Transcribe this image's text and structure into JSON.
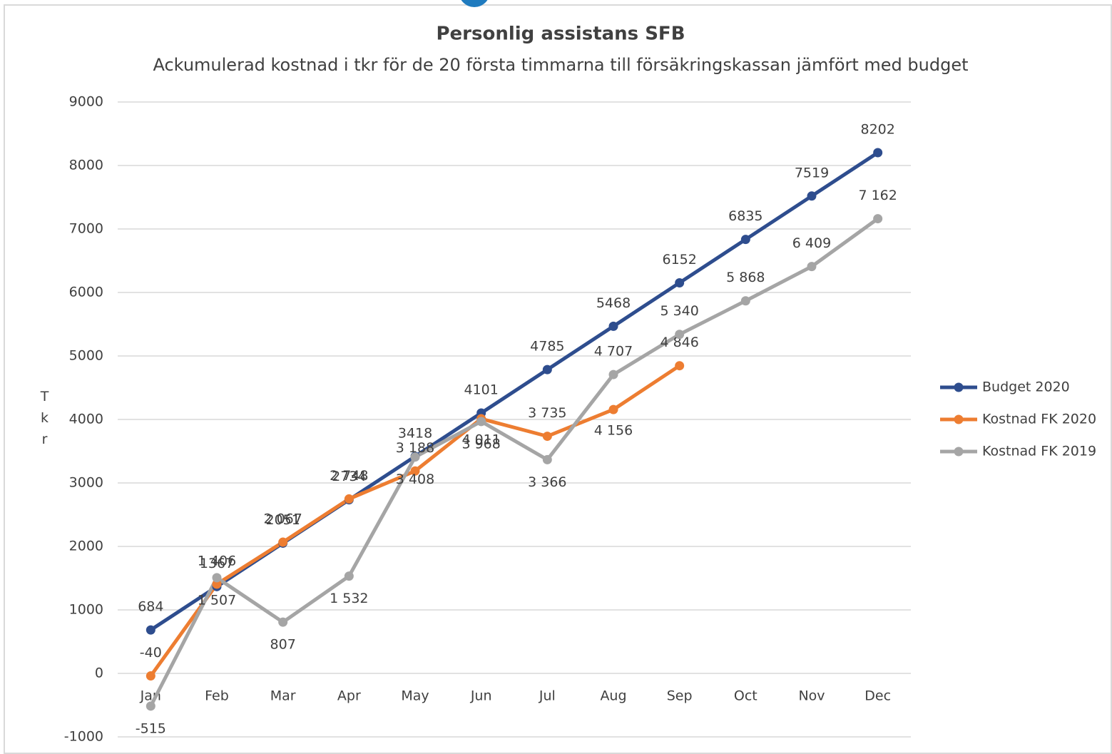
{
  "chart_data": {
    "type": "line",
    "title": "Personlig assistans SFB",
    "subtitle": "Ackumulerad kostnad i tkr för de 20 första timmarna till försäkringskassan jämfört med budget",
    "y_label": "Tkr",
    "categories": [
      "Jan",
      "Feb",
      "Mar",
      "Apr",
      "May",
      "Jun",
      "Jul",
      "Aug",
      "Sep",
      "Oct",
      "Nov",
      "Dec"
    ],
    "series": [
      {
        "name": "Budget 2020",
        "color": "#2e4d8e",
        "values": [
          684,
          1367,
          2051,
          2734,
          3418,
          4101,
          4785,
          5468,
          6152,
          6835,
          7519,
          8202
        ]
      },
      {
        "name": "Kostnad FK 2020",
        "color": "#ed7d31",
        "values": [
          -40,
          1406,
          2067,
          2748,
          3188,
          4011,
          3735,
          4156,
          4846,
          null,
          null,
          null
        ],
        "value_labels": [
          "-40",
          "1 406",
          "2 067",
          "2 748",
          "3 188",
          "4 011",
          "3 735",
          "4 156",
          "4 846",
          null,
          null,
          null
        ]
      },
      {
        "name": "Kostnad FK 2019",
        "color": "#a5a5a5",
        "values": [
          -515,
          1507,
          807,
          1532,
          3408,
          3968,
          3366,
          4707,
          5340,
          5868,
          6409,
          7162
        ],
        "value_labels": [
          "-515",
          "1 507",
          "807",
          "1 532",
          "3 408",
          "3 968",
          "3 366",
          "4 707",
          "5 340",
          "5 868",
          "6 409",
          "7 162"
        ]
      }
    ],
    "ylim": [
      -1000,
      9000
    ],
    "yticks": [
      -1000,
      0,
      1000,
      2000,
      3000,
      4000,
      5000,
      6000,
      7000,
      8000,
      9000
    ],
    "grid": true,
    "legend": "right"
  }
}
